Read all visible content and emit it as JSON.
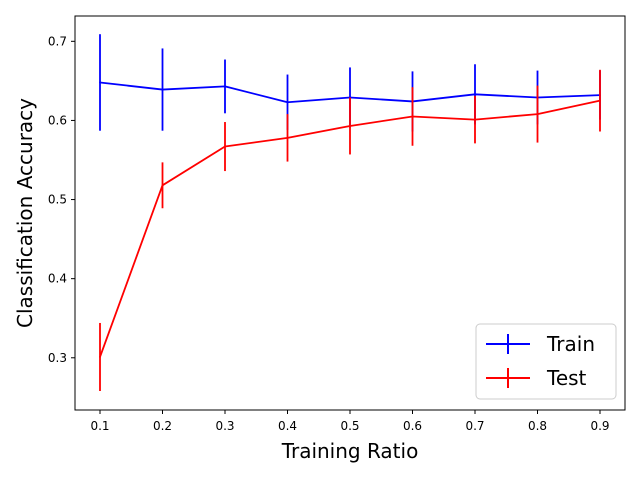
{
  "chart_data": {
    "type": "line",
    "title": "",
    "xlabel": "Training Ratio",
    "ylabel": "Classification Accuracy",
    "x": [
      0.1,
      0.2,
      0.3,
      0.4,
      0.5,
      0.6,
      0.7,
      0.8,
      0.9
    ],
    "x_tick_labels": [
      "0.1",
      "0.2",
      "0.3",
      "0.4",
      "0.5",
      "0.6",
      "0.7",
      "0.8",
      "0.9"
    ],
    "y_ticks": [
      0.3,
      0.4,
      0.5,
      0.6,
      0.7
    ],
    "y_tick_labels": [
      "0.3",
      "0.4",
      "0.5",
      "0.6",
      "0.7"
    ],
    "xlim": [
      0.06,
      0.94
    ],
    "ylim": [
      0.234,
      0.732
    ],
    "grid": false,
    "legend_position": "lower-right",
    "series": [
      {
        "name": "Train",
        "color": "#0000ff",
        "values": [
          0.648,
          0.639,
          0.643,
          0.623,
          0.629,
          0.624,
          0.633,
          0.629,
          0.632
        ],
        "errors": [
          0.061,
          0.052,
          0.034,
          0.035,
          0.038,
          0.038,
          0.038,
          0.034,
          0.031
        ]
      },
      {
        "name": "Test",
        "color": "#ff0000",
        "values": [
          0.301,
          0.518,
          0.567,
          0.578,
          0.593,
          0.605,
          0.601,
          0.608,
          0.625
        ],
        "errors": [
          0.043,
          0.029,
          0.031,
          0.03,
          0.036,
          0.037,
          0.03,
          0.036,
          0.039
        ]
      }
    ]
  }
}
